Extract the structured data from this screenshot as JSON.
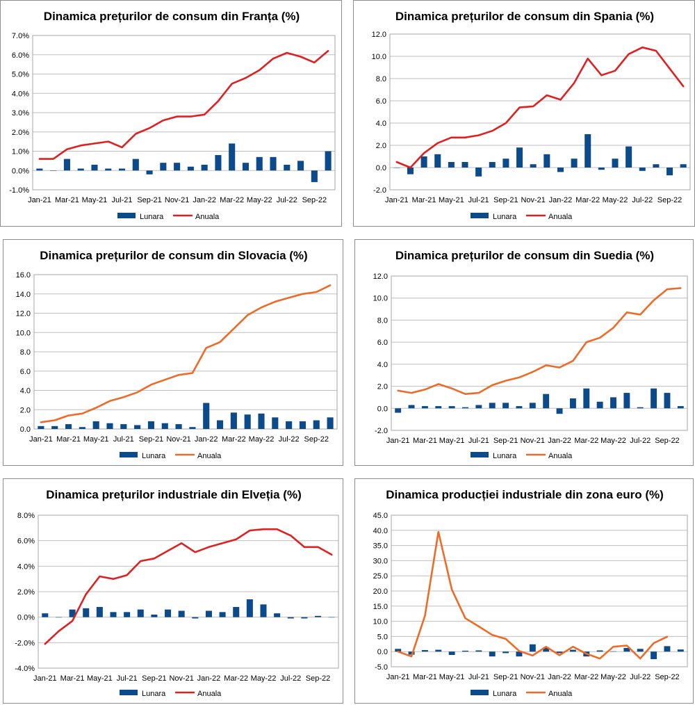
{
  "chart_data": [
    {
      "id": "franta",
      "type": "bar+line",
      "title": "Dinamica prețurilor de consum din Franța (%)",
      "ylim": [
        -1.0,
        7.0
      ],
      "yticks": [
        -1.0,
        0.0,
        1.0,
        2.0,
        3.0,
        4.0,
        5.0,
        6.0,
        7.0
      ],
      "ytick_labels": [
        "-1.0%",
        "0.0%",
        "1.0%",
        "2.0%",
        "3.0%",
        "4.0%",
        "5.0%",
        "6.0%",
        "7.0%"
      ],
      "xtick_labels": [
        "Jan-21",
        "Mar-21",
        "May-21",
        "Jul-21",
        "Sep-21",
        "Nov-21",
        "Jan-22",
        "Mar-22",
        "May-22",
        "Jul-22",
        "Sep-22"
      ],
      "categories": [
        "Jan-21",
        "Feb-21",
        "Mar-21",
        "Apr-21",
        "May-21",
        "Jun-21",
        "Jul-21",
        "Aug-21",
        "Sep-21",
        "Oct-21",
        "Nov-21",
        "Dec-21",
        "Jan-22",
        "Feb-22",
        "Mar-22",
        "Apr-22",
        "May-22",
        "Jun-22",
        "Jul-22",
        "Aug-22",
        "Sep-22",
        "Oct-22"
      ],
      "series": [
        {
          "name": "Lunara",
          "kind": "bar",
          "color": "#0b4a8b",
          "values": [
            0.1,
            0.0,
            0.6,
            0.1,
            0.3,
            0.1,
            0.1,
            0.6,
            -0.2,
            0.4,
            0.4,
            0.2,
            0.3,
            0.8,
            1.4,
            0.4,
            0.7,
            0.7,
            0.3,
            0.5,
            -0.6,
            1.0
          ]
        },
        {
          "name": "Anuala",
          "kind": "line",
          "color": "#e02020",
          "values": [
            0.6,
            0.6,
            1.1,
            1.3,
            1.4,
            1.5,
            1.2,
            1.9,
            2.2,
            2.6,
            2.8,
            2.8,
            2.9,
            3.6,
            4.5,
            4.8,
            5.2,
            5.8,
            6.1,
            5.9,
            5.6,
            6.2
          ]
        }
      ],
      "legend": "bottom"
    },
    {
      "id": "spania",
      "type": "bar+line",
      "title": "Dinamica prețurilor de consum din Spania (%)",
      "ylim": [
        -2.0,
        12.0
      ],
      "yticks": [
        -2.0,
        0.0,
        2.0,
        4.0,
        6.0,
        8.0,
        10.0,
        12.0
      ],
      "ytick_labels": [
        "-2.0",
        "0.0",
        "2.0",
        "4.0",
        "6.0",
        "8.0",
        "10.0",
        "12.0"
      ],
      "xtick_labels": [
        "Jan-21",
        "Mar-21",
        "May-21",
        "Jul-21",
        "Sep-21",
        "Nov-21",
        "Jan-22",
        "Mar-22",
        "May-22",
        "Jul-22",
        "Sep-22"
      ],
      "categories": [
        "Jan-21",
        "Feb-21",
        "Mar-21",
        "Apr-21",
        "May-21",
        "Jun-21",
        "Jul-21",
        "Aug-21",
        "Sep-21",
        "Oct-21",
        "Nov-21",
        "Dec-21",
        "Jan-22",
        "Feb-22",
        "Mar-22",
        "Apr-22",
        "May-22",
        "Jun-22",
        "Jul-22",
        "Aug-22",
        "Sep-22",
        "Oct-22"
      ],
      "series": [
        {
          "name": "Lunara",
          "kind": "bar",
          "color": "#0b4a8b",
          "values": [
            0.0,
            -0.6,
            1.0,
            1.2,
            0.5,
            0.5,
            -0.8,
            0.5,
            0.8,
            1.8,
            0.3,
            1.2,
            -0.4,
            0.8,
            3.0,
            -0.2,
            0.8,
            1.9,
            -0.3,
            0.3,
            -0.7,
            0.3
          ]
        },
        {
          "name": "Anuala",
          "kind": "line",
          "color": "#e02020",
          "values": [
            0.5,
            0.0,
            1.3,
            2.2,
            2.7,
            2.7,
            2.9,
            3.3,
            4.0,
            5.4,
            5.5,
            6.5,
            6.1,
            7.6,
            9.8,
            8.3,
            8.7,
            10.2,
            10.8,
            10.5,
            8.9,
            7.3
          ]
        }
      ],
      "legend": "bottom"
    },
    {
      "id": "slovacia",
      "type": "bar+line",
      "title": "Dinamica prețurilor de consum din Slovacia (%)",
      "ylim": [
        0.0,
        16.0
      ],
      "yticks": [
        0.0,
        2.0,
        4.0,
        6.0,
        8.0,
        10.0,
        12.0,
        14.0,
        16.0
      ],
      "ytick_labels": [
        "0.0",
        "2.0",
        "4.0",
        "6.0",
        "8.0",
        "10.0",
        "12.0",
        "14.0",
        "16.0"
      ],
      "xtick_labels": [
        "Jan-21",
        "Mar-21",
        "May-21",
        "Jul-21",
        "Sep-21",
        "Nov-21",
        "Jan-22",
        "Mar-22",
        "May-22",
        "Jul-22",
        "Sep-22"
      ],
      "categories": [
        "Jan-21",
        "Feb-21",
        "Mar-21",
        "Apr-21",
        "May-21",
        "Jun-21",
        "Jul-21",
        "Aug-21",
        "Sep-21",
        "Oct-21",
        "Nov-21",
        "Dec-21",
        "Jan-22",
        "Feb-22",
        "Mar-22",
        "Apr-22",
        "May-22",
        "Jun-22",
        "Jul-22",
        "Aug-22",
        "Sep-22",
        "Oct-22"
      ],
      "series": [
        {
          "name": "Lunara",
          "kind": "bar",
          "color": "#0b4a8b",
          "values": [
            0.3,
            0.3,
            0.5,
            0.2,
            0.8,
            0.6,
            0.5,
            0.4,
            0.8,
            0.6,
            0.5,
            0.2,
            2.7,
            0.9,
            1.7,
            1.5,
            1.6,
            1.2,
            0.8,
            0.8,
            0.9,
            1.2
          ]
        },
        {
          "name": "Anuala",
          "kind": "line",
          "color": "#ee6a25",
          "values": [
            0.7,
            0.9,
            1.4,
            1.6,
            2.2,
            2.9,
            3.3,
            3.8,
            4.6,
            5.1,
            5.6,
            5.8,
            8.4,
            9.0,
            10.4,
            11.8,
            12.6,
            13.2,
            13.6,
            14.0,
            14.2,
            14.9
          ]
        }
      ],
      "legend": "bottom"
    },
    {
      "id": "suedia",
      "type": "bar+line",
      "title": "Dinamica prețurilor de consum din Suedia (%)",
      "ylim": [
        -2.0,
        12.0
      ],
      "yticks": [
        -2.0,
        0.0,
        2.0,
        4.0,
        6.0,
        8.0,
        10.0,
        12.0
      ],
      "ytick_labels": [
        "-2.0",
        "0.0",
        "2.0",
        "4.0",
        "6.0",
        "8.0",
        "10.0",
        "12.0"
      ],
      "xtick_labels": [
        "Jan-21",
        "Mar-21",
        "May-21",
        "Jul-21",
        "Sep-21",
        "Nov-21",
        "Jan-22",
        "Mar-22",
        "May-22",
        "Jul-22",
        "Sep-22"
      ],
      "categories": [
        "Jan-21",
        "Feb-21",
        "Mar-21",
        "Apr-21",
        "May-21",
        "Jun-21",
        "Jul-21",
        "Aug-21",
        "Sep-21",
        "Oct-21",
        "Nov-21",
        "Dec-21",
        "Jan-22",
        "Feb-22",
        "Mar-22",
        "Apr-22",
        "May-22",
        "Jun-22",
        "Jul-22",
        "Aug-22",
        "Sep-22",
        "Oct-22"
      ],
      "series": [
        {
          "name": "Lunara",
          "kind": "bar",
          "color": "#0b4a8b",
          "values": [
            -0.4,
            0.3,
            0.2,
            0.2,
            0.2,
            0.1,
            0.3,
            0.5,
            0.5,
            0.2,
            0.5,
            1.3,
            -0.5,
            0.9,
            1.8,
            0.6,
            1.0,
            1.4,
            0.1,
            1.8,
            1.4,
            0.2
          ]
        },
        {
          "name": "Anuala",
          "kind": "line",
          "color": "#ee6a25",
          "values": [
            1.6,
            1.4,
            1.7,
            2.2,
            1.8,
            1.3,
            1.4,
            2.1,
            2.5,
            2.8,
            3.3,
            3.9,
            3.7,
            4.3,
            6.0,
            6.4,
            7.3,
            8.7,
            8.5,
            9.8,
            10.8,
            10.9
          ]
        }
      ],
      "legend": "bottom"
    },
    {
      "id": "elvetia",
      "type": "bar+line",
      "title": "Dinamica prețurilor industriale din Elveția (%)",
      "ylim": [
        -4.0,
        8.0
      ],
      "yticks": [
        -4.0,
        -2.0,
        0.0,
        2.0,
        4.0,
        6.0,
        8.0
      ],
      "ytick_labels": [
        "-4.0%",
        "-2.0%",
        "0.0%",
        "2.0%",
        "4.0%",
        "6.0%",
        "8.0%"
      ],
      "xtick_labels": [
        "Jan-21",
        "Mar-21",
        "May-21",
        "Jul-21",
        "Sep-21",
        "Nov-21",
        "Jan-22",
        "Mar-22",
        "May-22",
        "Jul-22",
        "Sep-22"
      ],
      "categories": [
        "Jan-21",
        "Feb-21",
        "Mar-21",
        "Apr-21",
        "May-21",
        "Jun-21",
        "Jul-21",
        "Aug-21",
        "Sep-21",
        "Oct-21",
        "Nov-21",
        "Dec-21",
        "Jan-22",
        "Feb-22",
        "Mar-22",
        "Apr-22",
        "May-22",
        "Jun-22",
        "Jul-22",
        "Aug-22",
        "Sep-22",
        "Oct-22"
      ],
      "series": [
        {
          "name": "Lunara",
          "kind": "bar",
          "color": "#0b4a8b",
          "values": [
            0.3,
            0.0,
            0.6,
            0.7,
            0.8,
            0.4,
            0.4,
            0.6,
            0.2,
            0.6,
            0.5,
            -0.1,
            0.5,
            0.4,
            0.8,
            1.4,
            1.0,
            0.3,
            -0.1,
            -0.1,
            0.1,
            0.0
          ]
        },
        {
          "name": "Anuala",
          "kind": "line",
          "color": "#e02020",
          "values": [
            -2.1,
            -1.1,
            -0.3,
            1.8,
            3.2,
            3.0,
            3.3,
            4.4,
            4.6,
            5.2,
            5.8,
            5.1,
            5.5,
            5.8,
            6.1,
            6.8,
            6.9,
            6.9,
            6.4,
            5.5,
            5.5,
            4.9
          ]
        }
      ],
      "legend": "bottom"
    },
    {
      "id": "zona-euro",
      "type": "bar+line",
      "title": "Dinamica producției industriale din zona euro (%)",
      "ylim": [
        -5.0,
        45.0
      ],
      "yticks": [
        -5.0,
        0.0,
        5.0,
        10.0,
        15.0,
        20.0,
        25.0,
        30.0,
        35.0,
        40.0,
        45.0
      ],
      "ytick_labels": [
        "-5.0",
        "0.0",
        "5.0",
        "10.0",
        "15.0",
        "20.0",
        "25.0",
        "30.0",
        "35.0",
        "40.0",
        "45.0"
      ],
      "xtick_labels": [
        "Jan-21",
        "Mar-21",
        "May-21",
        "Jul-21",
        "Sep-21",
        "Nov-21",
        "Jan-22",
        "Mar-22",
        "May-22",
        "Jul-22",
        "Sep-22"
      ],
      "categories": [
        "Jan-21",
        "Feb-21",
        "Mar-21",
        "Apr-21",
        "May-21",
        "Jun-21",
        "Jul-21",
        "Aug-21",
        "Sep-21",
        "Oct-21",
        "Nov-21",
        "Dec-21",
        "Jan-22",
        "Feb-22",
        "Mar-22",
        "Apr-22",
        "May-22",
        "Jun-22",
        "Jul-22",
        "Aug-22",
        "Sep-22",
        "Oct-22"
      ],
      "series": [
        {
          "name": "Lunara",
          "kind": "bar",
          "color": "#0b4a8b",
          "values": [
            0.9,
            -1.0,
            0.5,
            0.6,
            -1.1,
            0.3,
            0.4,
            -1.6,
            -0.5,
            -1.6,
            2.4,
            1.3,
            -0.5,
            0.6,
            -1.6,
            0.4,
            0.1,
            1.2,
            0.9,
            -2.5,
            1.8,
            0.7
          ]
        },
        {
          "name": "Anuala",
          "kind": "line",
          "color": "#ee6a25",
          "values": [
            0.0,
            -1.6,
            11.8,
            39.5,
            20.5,
            11.0,
            8.3,
            5.5,
            4.2,
            0.2,
            -1.3,
            1.6,
            -1.2,
            1.6,
            -0.7,
            -2.3,
            1.6,
            2.0,
            -2.3,
            2.8,
            4.9,
            null
          ],
          "note": "Anuala line ends at Sep-22 in the chart; the last point is read as 4.9"
        }
      ],
      "legend": "bottom"
    }
  ]
}
